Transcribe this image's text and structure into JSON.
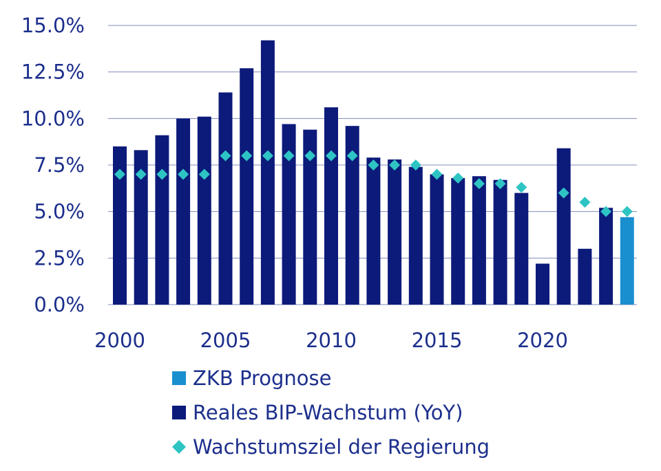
{
  "chart_data": {
    "type": "bar",
    "title": "",
    "xlabel": "",
    "ylabel": "",
    "x": [
      2000,
      2001,
      2002,
      2003,
      2004,
      2005,
      2006,
      2007,
      2008,
      2009,
      2010,
      2011,
      2012,
      2013,
      2014,
      2015,
      2016,
      2017,
      2018,
      2019,
      2020,
      2021,
      2022,
      2023,
      2024
    ],
    "ylim": [
      0,
      15
    ],
    "y_ticks": [
      "0.0%",
      "2.5%",
      "5.0%",
      "7.5%",
      "10.0%",
      "12.5%",
      "15.0%"
    ],
    "x_ticks": [
      "2000",
      "2005",
      "2010",
      "2015",
      "2020"
    ],
    "grid": "horizontal",
    "legend_position": "bottom",
    "series": [
      {
        "name": "Reales BIP-Wachstum (YoY)",
        "kind": "bar",
        "color": "#0c1a7a",
        "values": [
          8.5,
          8.3,
          9.1,
          10.0,
          10.1,
          11.4,
          12.7,
          14.2,
          9.7,
          9.4,
          10.6,
          9.6,
          7.9,
          7.8,
          7.4,
          7.0,
          6.8,
          6.9,
          6.7,
          6.0,
          2.2,
          8.4,
          3.0,
          5.2,
          null
        ]
      },
      {
        "name": "ZKB Prognose",
        "kind": "bar",
        "color": "#1a8fd0",
        "values": [
          null,
          null,
          null,
          null,
          null,
          null,
          null,
          null,
          null,
          null,
          null,
          null,
          null,
          null,
          null,
          null,
          null,
          null,
          null,
          null,
          null,
          null,
          null,
          null,
          4.7
        ]
      },
      {
        "name": "Wachstumsziel der Regierung",
        "kind": "marker",
        "marker": "diamond",
        "color": "#2ec4c4",
        "values": [
          7.0,
          7.0,
          7.0,
          7.0,
          7.0,
          8.0,
          8.0,
          8.0,
          8.0,
          8.0,
          8.0,
          8.0,
          7.5,
          7.5,
          7.5,
          7.0,
          6.8,
          6.5,
          6.5,
          6.3,
          null,
          6.0,
          5.5,
          5.0,
          5.0
        ]
      }
    ],
    "legend": [
      {
        "label": "ZKB Prognose",
        "symbol": "square",
        "color": "#1a8fd0"
      },
      {
        "label": "Reales BIP-Wachstum (YoY)",
        "symbol": "square",
        "color": "#0c1a7a"
      },
      {
        "label": "Wachstumsziel der Regierung",
        "symbol": "diamond",
        "color": "#2ec4c4"
      }
    ]
  }
}
